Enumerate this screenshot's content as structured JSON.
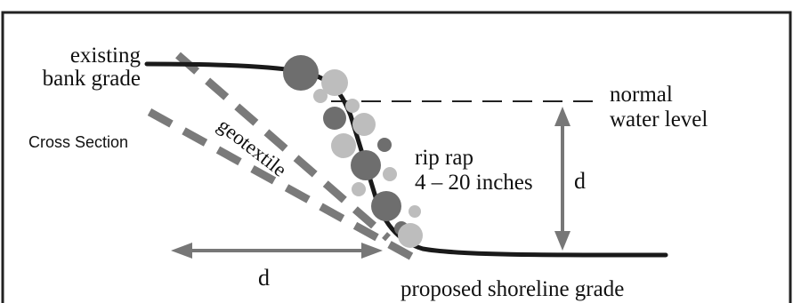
{
  "labels": {
    "existing_bank_grade_line1": "existing",
    "existing_bank_grade_line2": "bank grade",
    "cross_section": "Cross Section",
    "geotextile": "geotextile",
    "rip_rap_line1": "rip rap",
    "rip_rap_line2": "4 – 20 inches",
    "normal_water_level_line1": "normal",
    "normal_water_level_line2": "water level",
    "depth_vertical": "d",
    "depth_horizontal": "d",
    "proposed_shoreline_grade": "proposed shoreline grade"
  },
  "colors": {
    "border": "#222222",
    "ground_line": "#1a1a1a",
    "geotextile": "#7a7a7a",
    "arrow": "#777777",
    "rock_dark": "#6e6e6e",
    "rock_light": "#bdbdbd"
  }
}
